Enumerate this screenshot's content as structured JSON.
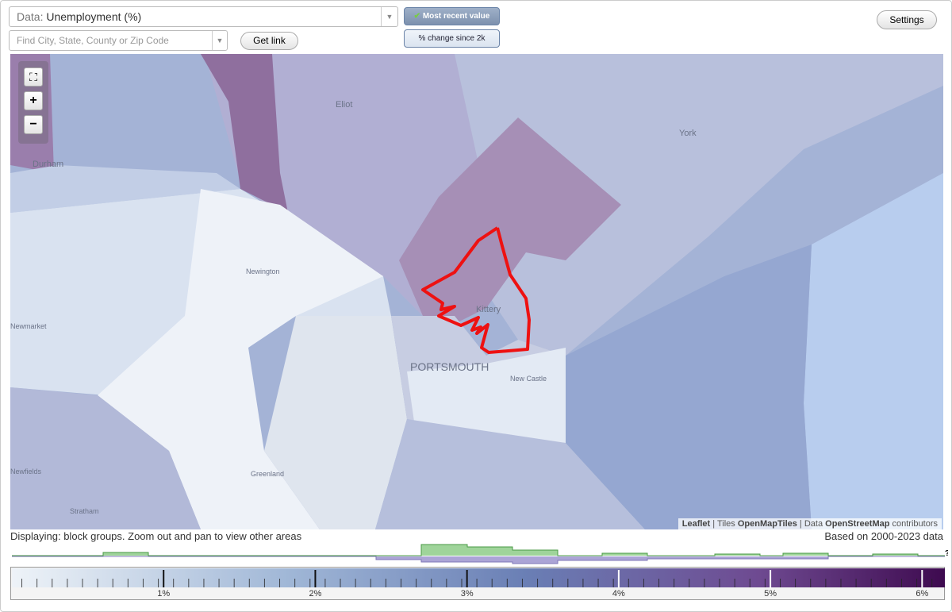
{
  "controls": {
    "data_label": "Data:",
    "data_value": "Unemployment (%)",
    "search_placeholder": "Find City, State, County or Zip Code",
    "get_link": "Get link",
    "most_recent": "Most recent value",
    "change": "% change since 2k",
    "settings": "Settings"
  },
  "map": {
    "places": [
      "Eliot",
      "York",
      "Durham",
      "Newington",
      "Kittery",
      "PORTSMOUTH",
      "New Castle",
      "Newmarket",
      "Newfields",
      "Greenland",
      "Stratham"
    ],
    "attribution": {
      "leaflet": "Leaflet",
      "sep1": "|",
      "tiles": "Tiles",
      "tiles_src": "OpenMapTiles",
      "sep2": "|",
      "data": "Data",
      "data_src": "OpenStreetMap",
      "contributors": "contributors"
    }
  },
  "status": {
    "left": "Displaying: block groups. Zoom out and pan to view other areas",
    "right": "Based on 2000-2023 data",
    "help": "?"
  },
  "legend": {
    "range": [
      0,
      6.15
    ],
    "ticks": [
      {
        "value": 1,
        "label": "1%"
      },
      {
        "value": 2,
        "label": "2%"
      },
      {
        "value": 3,
        "label": "3%"
      },
      {
        "value": 4,
        "label": "4%"
      },
      {
        "value": 5,
        "label": "5%"
      },
      {
        "value": 6,
        "label": "6%"
      }
    ]
  }
}
